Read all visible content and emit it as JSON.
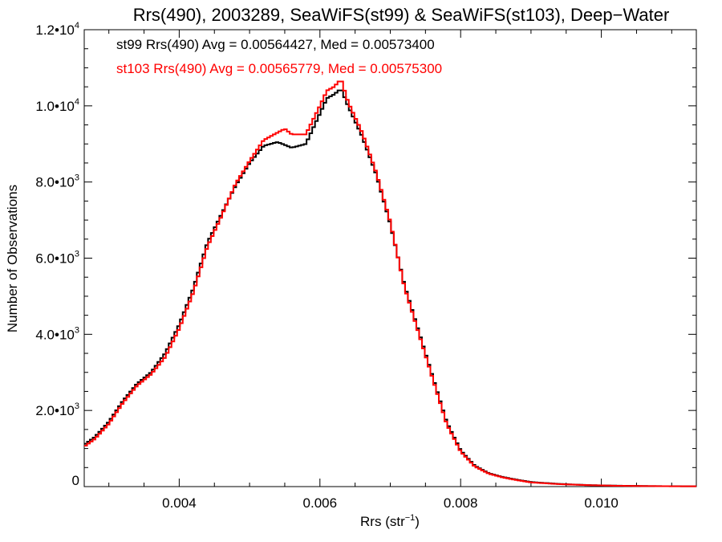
{
  "chart_data": {
    "type": "line",
    "step": true,
    "title": "Rrs(490), 2003289, SeaWiFS(st99) & SeaWiFS(st103), Deep−Water",
    "xlabel": "Rrs (str",
    "xlabel_sup": "−1",
    "xlabel_end": ")",
    "ylabel": "Number of Observations",
    "xlim": [
      0.00265,
      0.01135
    ],
    "ylim": [
      0,
      12000
    ],
    "grid": false,
    "x_ticks": [
      {
        "value": 0.004,
        "label": "0.004"
      },
      {
        "value": 0.006,
        "label": "0.006"
      },
      {
        "value": 0.008,
        "label": "0.008"
      },
      {
        "value": 0.01,
        "label": "0.010"
      }
    ],
    "y_ticks": [
      {
        "value": 0,
        "mant": "0",
        "exp": ""
      },
      {
        "value": 2000,
        "mant": "2.0•10",
        "exp": "3"
      },
      {
        "value": 4000,
        "mant": "4.0•10",
        "exp": "3"
      },
      {
        "value": 6000,
        "mant": "6.0•10",
        "exp": "3"
      },
      {
        "value": 8000,
        "mant": "8.0•10",
        "exp": "3"
      },
      {
        "value": 10000,
        "mant": "1.0•10",
        "exp": "4"
      },
      {
        "value": 12000,
        "mant": "1.2•10",
        "exp": "4"
      }
    ],
    "annotations": [
      {
        "text": "st99 Rrs(490) Avg = 0.00564427, Med = 0.00573400",
        "color": "#000000"
      },
      {
        "text": "st103 Rrs(490) Avg = 0.00565779, Med = 0.00575300",
        "color": "#ff0000"
      }
    ],
    "series": [
      {
        "color": "#000000",
        "x": [
          0.00265,
          0.0028,
          0.003,
          0.0032,
          0.0034,
          0.0036,
          0.0038,
          0.004,
          0.0042,
          0.0044,
          0.0046,
          0.0048,
          0.005,
          0.0052,
          0.0054,
          0.0056,
          0.0058,
          0.006,
          0.0061,
          0.0062,
          0.0063,
          0.0064,
          0.0066,
          0.0068,
          0.007,
          0.0072,
          0.0074,
          0.0076,
          0.0078,
          0.008,
          0.0082,
          0.0084,
          0.0086,
          0.0088,
          0.009,
          0.0094,
          0.0098,
          0.0102,
          0.0106,
          0.011,
          0.01135
        ],
        "y": [
          1100,
          1300,
          1700,
          2250,
          2700,
          3000,
          3500,
          4250,
          5200,
          6400,
          7150,
          7900,
          8500,
          8950,
          9050,
          8900,
          9000,
          9800,
          10200,
          10300,
          10450,
          10000,
          9200,
          8200,
          6900,
          5300,
          4100,
          2900,
          1700,
          950,
          550,
          350,
          250,
          180,
          120,
          70,
          40,
          25,
          15,
          10,
          8
        ]
      },
      {
        "color": "#ff0000",
        "x": [
          0.00265,
          0.0028,
          0.003,
          0.0032,
          0.0034,
          0.0036,
          0.0038,
          0.004,
          0.0042,
          0.0044,
          0.0046,
          0.0048,
          0.005,
          0.0052,
          0.0054,
          0.0055,
          0.0056,
          0.0058,
          0.006,
          0.0061,
          0.0062,
          0.0063,
          0.0064,
          0.0066,
          0.0068,
          0.007,
          0.0072,
          0.0074,
          0.0076,
          0.0078,
          0.008,
          0.0082,
          0.0084,
          0.0086,
          0.0088,
          0.009,
          0.0094,
          0.0098,
          0.0102,
          0.0106,
          0.011,
          0.01135
        ],
        "y": [
          1050,
          1250,
          1650,
          2200,
          2650,
          2950,
          3400,
          4150,
          5100,
          6300,
          7100,
          7950,
          8550,
          9100,
          9300,
          9400,
          9250,
          9250,
          10000,
          10400,
          10500,
          10700,
          10100,
          9300,
          8250,
          6950,
          5250,
          4050,
          2850,
          1650,
          920,
          530,
          340,
          240,
          170,
          110,
          65,
          38,
          22,
          14,
          9,
          7
        ]
      }
    ]
  }
}
